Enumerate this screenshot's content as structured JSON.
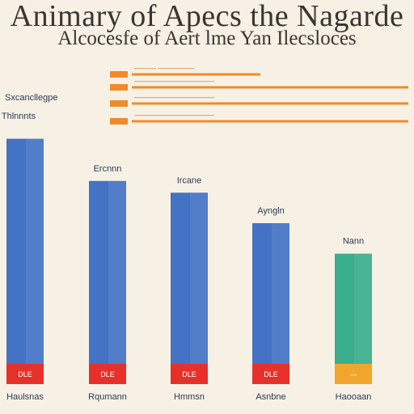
{
  "title": "Animary of Apecs the Nagarde",
  "subtitle": "Alcocesfe of Aert lme Yan Ilecsloces",
  "legend": {
    "color": "#f08a2a",
    "entries": [
      {
        "label": "——— —————"
      },
      {
        "label": "———————————"
      },
      {
        "label": "———————————"
      },
      {
        "label": "———————————"
      }
    ]
  },
  "colors": {
    "bar_blue": "#4472c4",
    "bar_teal": "#3aae8c",
    "base_red": "#e8302a",
    "base_orange": "#f2a52b",
    "grid": "#d9d2c2"
  },
  "chart_data": {
    "type": "bar",
    "title": "Animary of Apecs the Nagarde",
    "subtitle": "Alcocesfe of Aert lme Yan Ilecsloces",
    "categories": [
      "Haulsnas",
      "Rqumann",
      "Hmmsn",
      "Asnbne",
      "Haooaan"
    ],
    "data_labels": [
      "Thlnnnts",
      "Ercnnn",
      "Ircane",
      "Ayngln",
      "Nann"
    ],
    "values": [
      96,
      78,
      73,
      60,
      47
    ],
    "base_labels": [
      "DLE",
      "DLE",
      "DLE",
      "DLE",
      "—"
    ],
    "header_label": "Sxcancllegpe",
    "series_colors": [
      "#4472c4",
      "#4472c4",
      "#4472c4",
      "#4472c4",
      "#3aae8c"
    ],
    "base_colors": [
      "#e8302a",
      "#e8302a",
      "#e8302a",
      "#e8302a",
      "#f2a52b"
    ],
    "ylim": [
      0,
      100
    ],
    "grid": false,
    "legend_position": "top-center"
  }
}
